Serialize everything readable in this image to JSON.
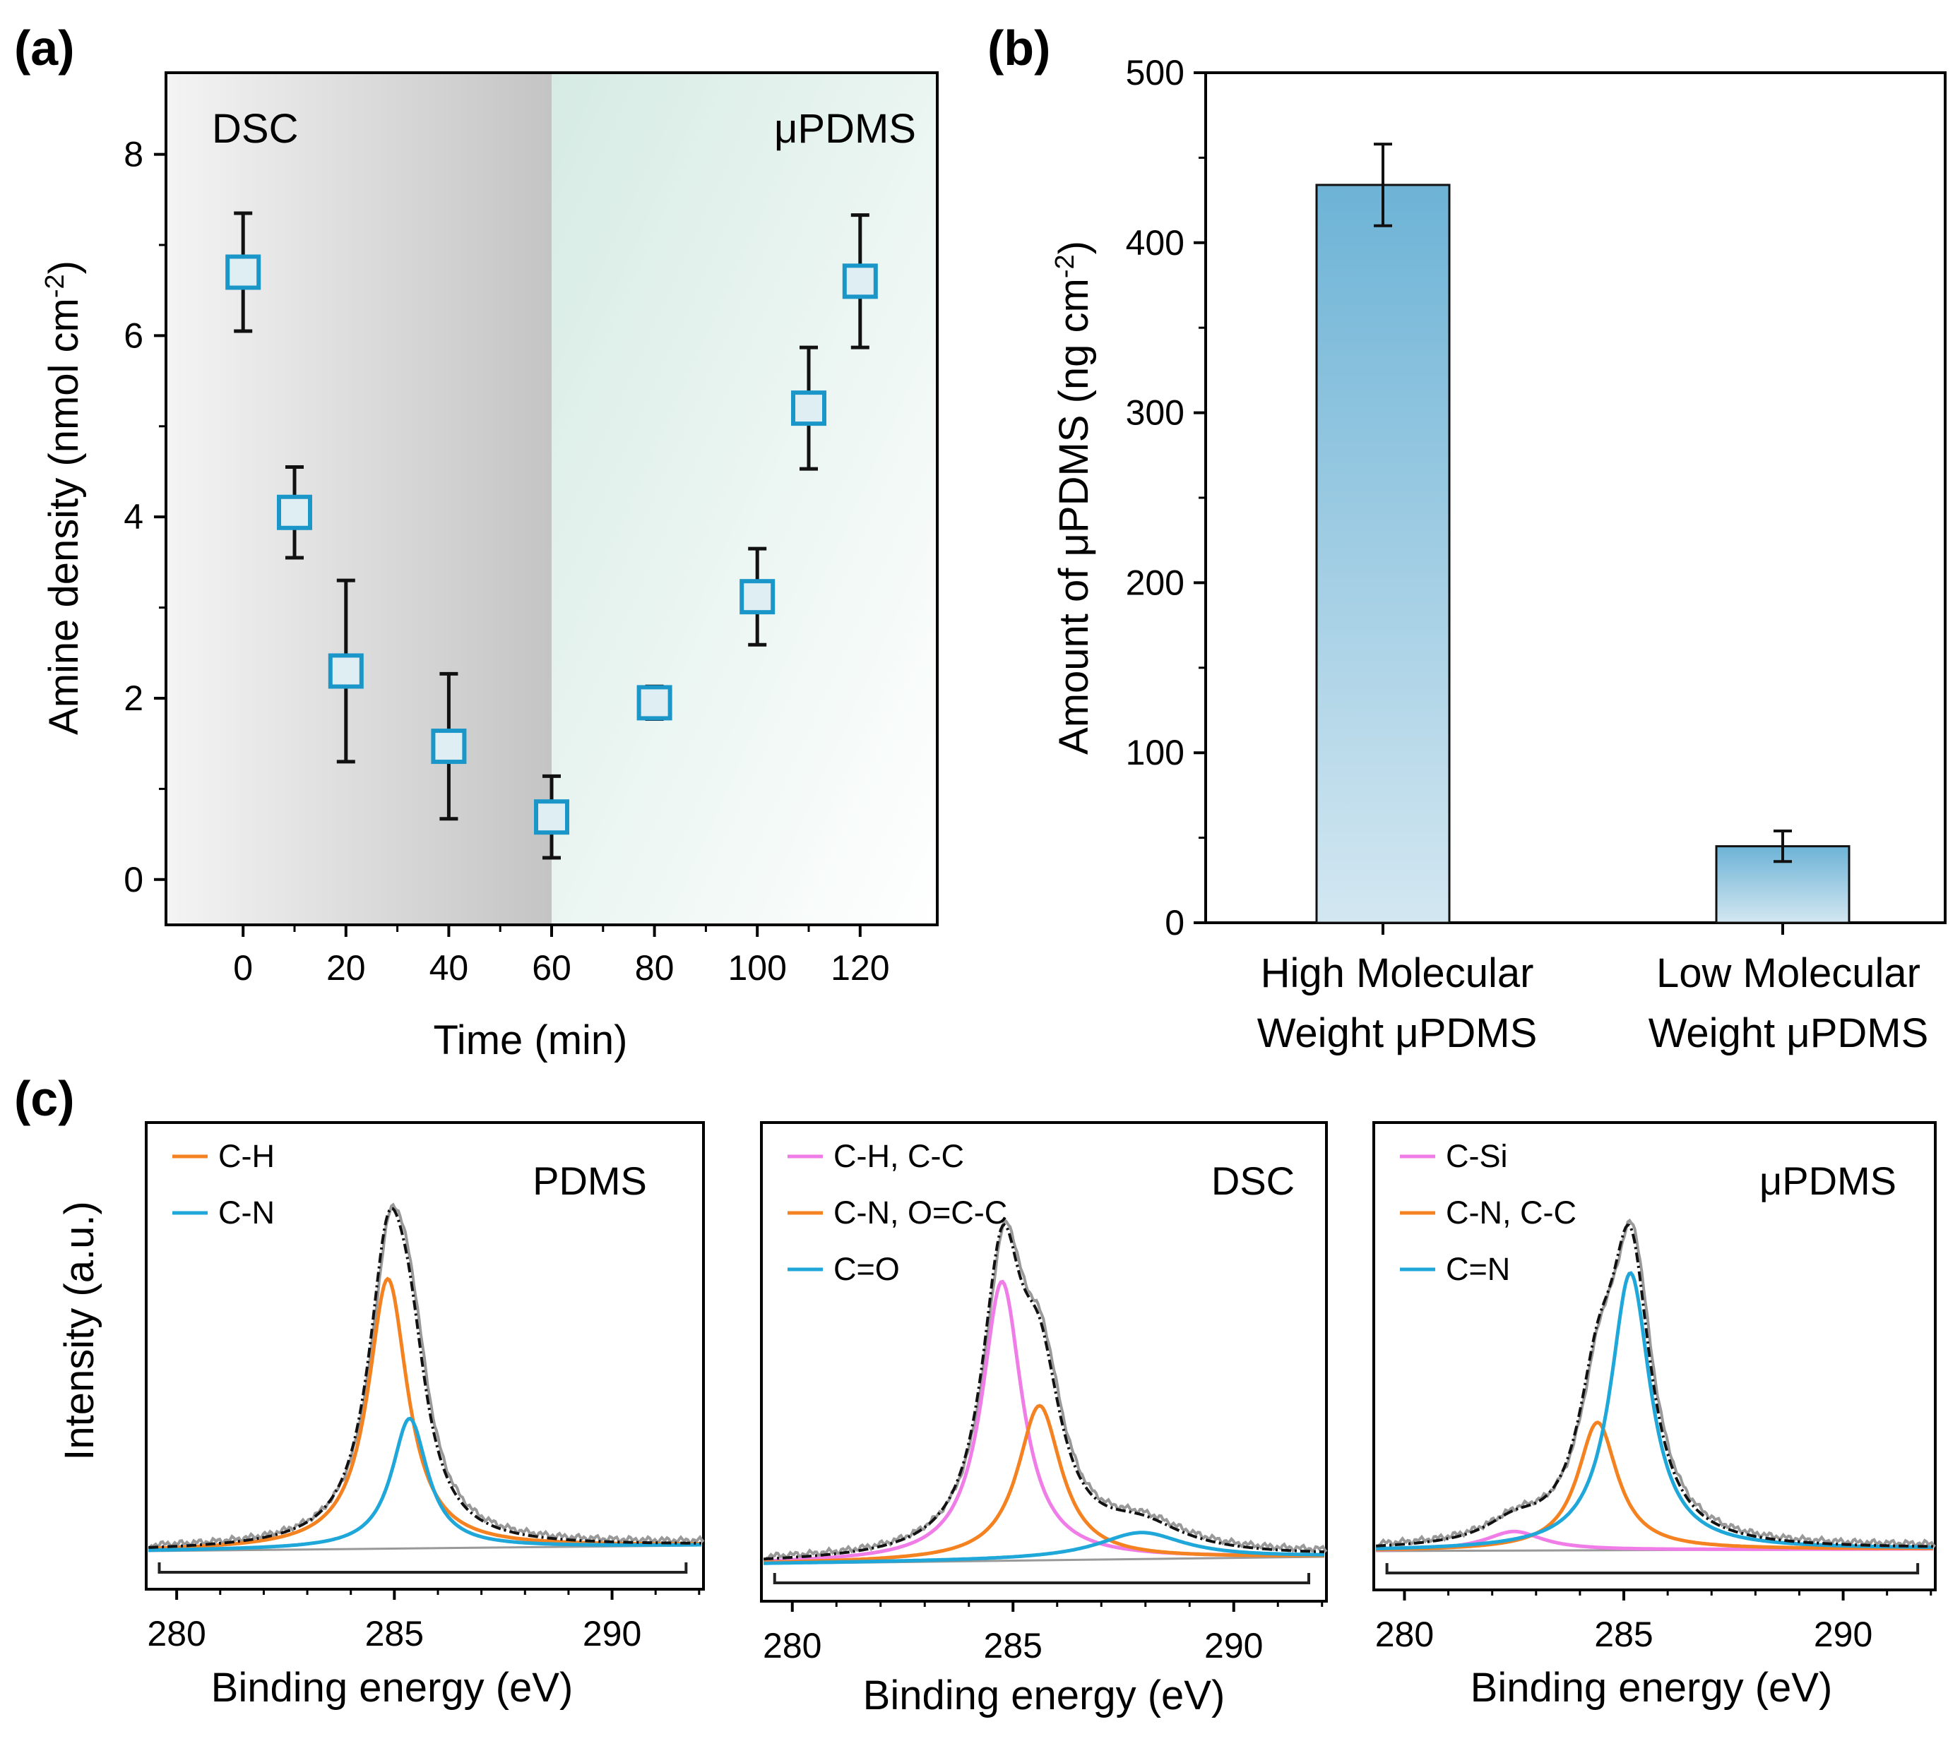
{
  "colors": {
    "marker_edge": "#1a96c8",
    "marker_fill": "#dfeef3",
    "orange": "#f58220",
    "cyan": "#1ea7d8",
    "magenta": "#f07ce8",
    "gray": "#999999",
    "bar_top": "#6db3d6",
    "bar_bottom": "#d3e7f1"
  },
  "chart_data": [
    {
      "panel_label": "(a)",
      "type": "scatter",
      "xlabel": "Time (min)",
      "ylabel_main": "Amine density (nmol cm",
      "ylabel_sup": "-2",
      "ylabel_end": ")",
      "xlim": [
        -15,
        135
      ],
      "ylim": [
        -0.5,
        8.9
      ],
      "xticks": [
        0,
        20,
        40,
        60,
        80,
        100,
        120
      ],
      "xticks_minor": [
        10,
        30,
        50,
        70,
        90,
        110
      ],
      "yticks": [
        0,
        2,
        4,
        6,
        8
      ],
      "region_left_label": "DSC",
      "region_right_label": "μPDMS",
      "region_boundary_x": 60,
      "points": [
        {
          "x": 0,
          "y": 6.7,
          "err": 0.65
        },
        {
          "x": 10,
          "y": 4.05,
          "err": 0.5
        },
        {
          "x": 20,
          "y": 2.3,
          "err": 1.0
        },
        {
          "x": 40,
          "y": 1.47,
          "err": 0.8
        },
        {
          "x": 60,
          "y": 0.69,
          "err": 0.45
        },
        {
          "x": 80,
          "y": 1.95,
          "err": 0.18
        },
        {
          "x": 100,
          "y": 3.12,
          "err": 0.53
        },
        {
          "x": 110,
          "y": 5.2,
          "err": 0.67
        },
        {
          "x": 120,
          "y": 6.6,
          "err": 0.73
        }
      ]
    },
    {
      "panel_label": "(b)",
      "type": "bar",
      "ylabel_main": "Amount of μPDMS (ng cm",
      "ylabel_sup": "-2",
      "ylabel_end": ")",
      "ylim": [
        0,
        500
      ],
      "yticks": [
        0,
        100,
        200,
        300,
        400,
        500
      ],
      "categories": [
        {
          "line1": "High Molecular",
          "line2": "Weight μPDMS"
        },
        {
          "line1": "Low Molecular",
          "line2": "Weight μPDMS"
        }
      ],
      "values": [
        434,
        45
      ],
      "errors": [
        24,
        9
      ]
    },
    {
      "panel_label": "(c)",
      "type": "line",
      "ylabel": "Intensity (a.u.)",
      "subplots": [
        {
          "title": "PDMS",
          "xlabel": "Binding energy (eV)",
          "xlim": [
            279.3,
            292.1
          ],
          "xticks": [
            280,
            285,
            290
          ],
          "bracket": [
            279.6,
            291.7
          ],
          "components": [
            {
              "name": "C-H",
              "color": "orange",
              "center": 284.85,
              "height": 0.775,
              "width": 0.55
            },
            {
              "name": "C-N",
              "color": "cyan",
              "center": 285.35,
              "height": 0.373,
              "width": 0.5
            }
          ],
          "envelope_peak": 284.95
        },
        {
          "title": "DSC",
          "xlabel": "Binding energy (eV)",
          "xlim": [
            279.3,
            292.1
          ],
          "xticks": [
            280,
            285,
            290
          ],
          "bracket": [
            279.6,
            291.7
          ],
          "components": [
            {
              "name": "C-H, C-C",
              "color": "magenta",
              "center": 284.75,
              "height": 0.791,
              "width": 0.55
            },
            {
              "name": "C-N, O=C-C",
              "color": "orange",
              "center": 285.6,
              "height": 0.438,
              "width": 0.6
            },
            {
              "name": "C=O",
              "color": "cyan",
              "center": 287.9,
              "height": 0.075,
              "width": 1.2
            }
          ],
          "envelope_peak": 284.95
        },
        {
          "title": "μPDMS",
          "xlabel": "Binding energy (eV)",
          "xlim": [
            279.3,
            292.1
          ],
          "xticks": [
            280,
            285,
            290
          ],
          "bracket": [
            279.6,
            291.7
          ],
          "components": [
            {
              "name": "C-Si",
              "color": "magenta",
              "center": 282.5,
              "height": 0.054,
              "width": 0.8
            },
            {
              "name": "C-N, C-C",
              "color": "orange",
              "center": 284.4,
              "height": 0.362,
              "width": 0.55
            },
            {
              "name": "C=N",
              "color": "cyan",
              "center": 285.15,
              "height": 0.785,
              "width": 0.55
            }
          ],
          "envelope_peak": 285.0
        }
      ]
    }
  ]
}
